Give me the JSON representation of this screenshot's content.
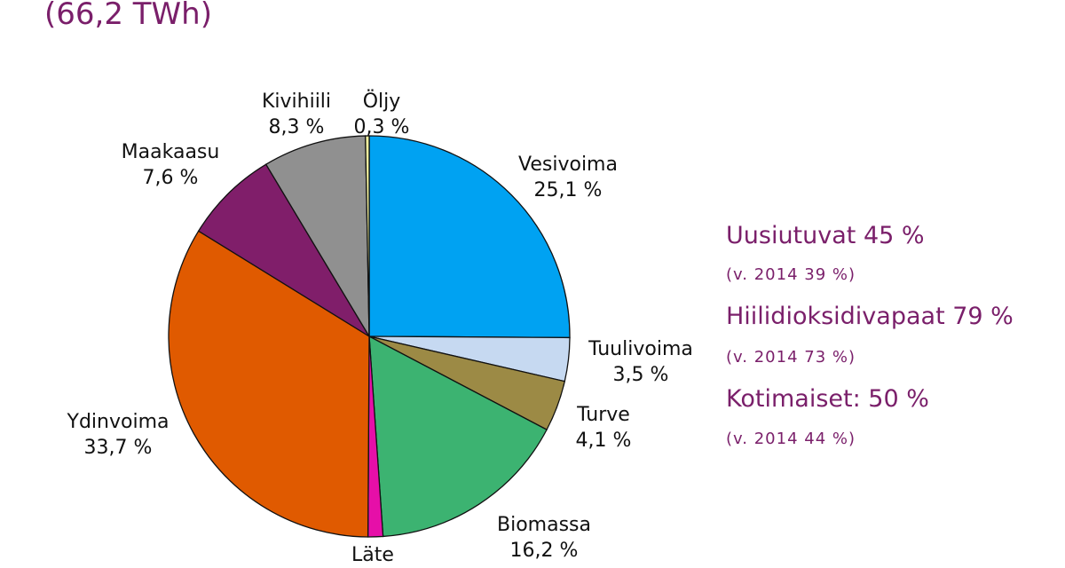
{
  "header": {
    "title_partial": "",
    "subtitle": "(66,2 TWh)"
  },
  "chart_data": {
    "type": "pie",
    "title": "(66,2 TWh)",
    "start_angle": "12 o'clock, clockwise",
    "slices": [
      {
        "label": "Vesivoima",
        "value": 25.1,
        "value_label": "25,1 %",
        "color": "#00a2f2"
      },
      {
        "label": "Tuulivoima",
        "value": 3.5,
        "value_label": "3,5 %",
        "color": "#c6d9f1"
      },
      {
        "label": "Turve",
        "value": 4.1,
        "value_label": "4,1 %",
        "color": "#9c8a45"
      },
      {
        "label": "Biomassa",
        "value": 16.2,
        "value_label": "16,2 %",
        "color": "#3cb371"
      },
      {
        "label": "Läte",
        "value": 1.2,
        "value_label": "",
        "color": "#e60fa8"
      },
      {
        "label": "Ydinvoima",
        "value": 33.7,
        "value_label": "33,7 %",
        "color": "#e05a00"
      },
      {
        "label": "Maakaasu",
        "value": 7.6,
        "value_label": "7,6 %",
        "color": "#801e6a"
      },
      {
        "label": "Kivihiili",
        "value": 8.3,
        "value_label": "8,3 %",
        "color": "#909090"
      },
      {
        "label": "Öljy",
        "value": 0.3,
        "value_label": "0,3 %",
        "color": "#f5f5a0"
      }
    ]
  },
  "labels": {
    "vesivoima": {
      "name": "Vesivoima",
      "pct": "25,1 %"
    },
    "tuulivoima": {
      "name": "Tuulivoima",
      "pct": "3,5 %"
    },
    "turve": {
      "name": "Turve",
      "pct": "4,1 %"
    },
    "biomassa": {
      "name": "Biomassa",
      "pct": "16,2 %"
    },
    "jate": {
      "name": "Läte"
    },
    "ydinvoima": {
      "name": "Ydinvoima",
      "pct": "33,7 %"
    },
    "maakaasu": {
      "name": "Maakaasu",
      "pct": "7,6 %"
    },
    "kivihiili": {
      "name": "Kivihiili",
      "pct": "8,3 %"
    },
    "oljy": {
      "name": "Öljy",
      "pct": "0,3 %"
    }
  },
  "summary": [
    {
      "main": "Uusiutuvat 45 %",
      "sub": "(v. 2014 39 %)"
    },
    {
      "main": "Hiilidioksidivapaat 79 %",
      "sub": "(v. 2014 73 %)"
    },
    {
      "main": "Kotimaiset:  50 %",
      "sub": "(v. 2014 44 %)"
    }
  ],
  "colors": {
    "accent": "#7a1f6a"
  }
}
